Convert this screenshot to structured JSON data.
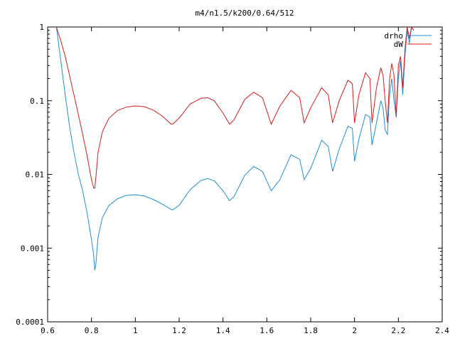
{
  "chart_data": {
    "type": "line",
    "title": "m4/n1.5/k200/0.64/512",
    "xlabel": "",
    "ylabel": "",
    "xlim": [
      0.6,
      2.4
    ],
    "ylim": [
      0.0001,
      1
    ],
    "yscale": "log",
    "grid": false,
    "legend_position": "top-right",
    "x_ticks": [
      0.6,
      0.8,
      1,
      1.2,
      1.4,
      1.6,
      1.8,
      2,
      2.2,
      2.4
    ],
    "x_tick_labels": [
      "0.6",
      "0.8",
      "1",
      "1.2",
      "1.4",
      "1.6",
      "1.8",
      "2",
      "2.2",
      "2.4"
    ],
    "y_ticks": [
      1,
      0.1,
      0.01,
      0.001,
      0.0001
    ],
    "y_tick_labels": [
      "1",
      "0.1",
      "0.01",
      "0.001",
      "0.0001"
    ],
    "series": [
      {
        "name": "drho",
        "color": "#1f8fdb",
        "x": [
          0.64,
          0.66,
          0.68,
          0.7,
          0.72,
          0.74,
          0.76,
          0.78,
          0.8,
          0.81,
          0.815,
          0.82,
          0.83,
          0.85,
          0.88,
          0.92,
          0.96,
          1.0,
          1.04,
          1.08,
          1.12,
          1.16,
          1.17,
          1.2,
          1.25,
          1.3,
          1.33,
          1.36,
          1.4,
          1.43,
          1.45,
          1.5,
          1.54,
          1.58,
          1.62,
          1.66,
          1.71,
          1.75,
          1.77,
          1.8,
          1.85,
          1.88,
          1.9,
          1.93,
          1.97,
          1.99,
          2.0,
          2.02,
          2.05,
          2.07,
          2.08,
          2.1,
          2.12,
          2.13,
          2.14,
          2.15,
          2.16,
          2.17,
          2.18,
          2.19,
          2.2,
          2.21,
          2.22,
          2.23,
          2.24,
          2.25,
          2.26,
          2.27
        ],
        "values": [
          1.0,
          0.35,
          0.12,
          0.045,
          0.02,
          0.01,
          0.006,
          0.003,
          0.0013,
          0.0008,
          0.0005,
          0.0006,
          0.0014,
          0.0026,
          0.0038,
          0.0047,
          0.0052,
          0.0053,
          0.0051,
          0.0046,
          0.004,
          0.0034,
          0.0033,
          0.0038,
          0.0062,
          0.0083,
          0.0088,
          0.0082,
          0.006,
          0.0044,
          0.005,
          0.0098,
          0.0128,
          0.011,
          0.006,
          0.0085,
          0.0185,
          0.016,
          0.0085,
          0.012,
          0.029,
          0.024,
          0.011,
          0.022,
          0.045,
          0.042,
          0.015,
          0.03,
          0.065,
          0.06,
          0.025,
          0.05,
          0.1,
          0.08,
          0.04,
          0.035,
          0.12,
          0.2,
          0.1,
          0.06,
          0.2,
          0.35,
          0.12,
          0.4,
          0.9,
          0.6,
          1.0,
          0.9
        ]
      },
      {
        "name": "dW",
        "color": "#d61c1c",
        "x": [
          0.64,
          0.66,
          0.68,
          0.7,
          0.72,
          0.74,
          0.76,
          0.78,
          0.8,
          0.81,
          0.815,
          0.82,
          0.83,
          0.85,
          0.88,
          0.92,
          0.96,
          1.0,
          1.04,
          1.08,
          1.12,
          1.16,
          1.17,
          1.2,
          1.25,
          1.3,
          1.33,
          1.36,
          1.4,
          1.43,
          1.45,
          1.5,
          1.54,
          1.58,
          1.62,
          1.66,
          1.71,
          1.75,
          1.77,
          1.8,
          1.85,
          1.88,
          1.9,
          1.93,
          1.97,
          1.99,
          2.0,
          2.02,
          2.05,
          2.07,
          2.08,
          2.1,
          2.12,
          2.13,
          2.14,
          2.15,
          2.16,
          2.17,
          2.18,
          2.19,
          2.2,
          2.21,
          2.22,
          2.23,
          2.24,
          2.25,
          2.26,
          2.27
        ],
        "values": [
          1.0,
          0.65,
          0.4,
          0.22,
          0.12,
          0.065,
          0.035,
          0.018,
          0.0085,
          0.0065,
          0.0065,
          0.009,
          0.02,
          0.038,
          0.058,
          0.074,
          0.082,
          0.085,
          0.083,
          0.075,
          0.063,
          0.049,
          0.048,
          0.058,
          0.09,
          0.108,
          0.11,
          0.1,
          0.068,
          0.048,
          0.055,
          0.105,
          0.13,
          0.11,
          0.048,
          0.085,
          0.138,
          0.11,
          0.05,
          0.08,
          0.15,
          0.12,
          0.05,
          0.1,
          0.19,
          0.17,
          0.05,
          0.12,
          0.24,
          0.2,
          0.05,
          0.15,
          0.28,
          0.22,
          0.1,
          0.05,
          0.2,
          0.32,
          0.22,
          0.06,
          0.3,
          0.4,
          0.15,
          0.5,
          1.0,
          0.7,
          1.0,
          0.9
        ]
      }
    ]
  }
}
